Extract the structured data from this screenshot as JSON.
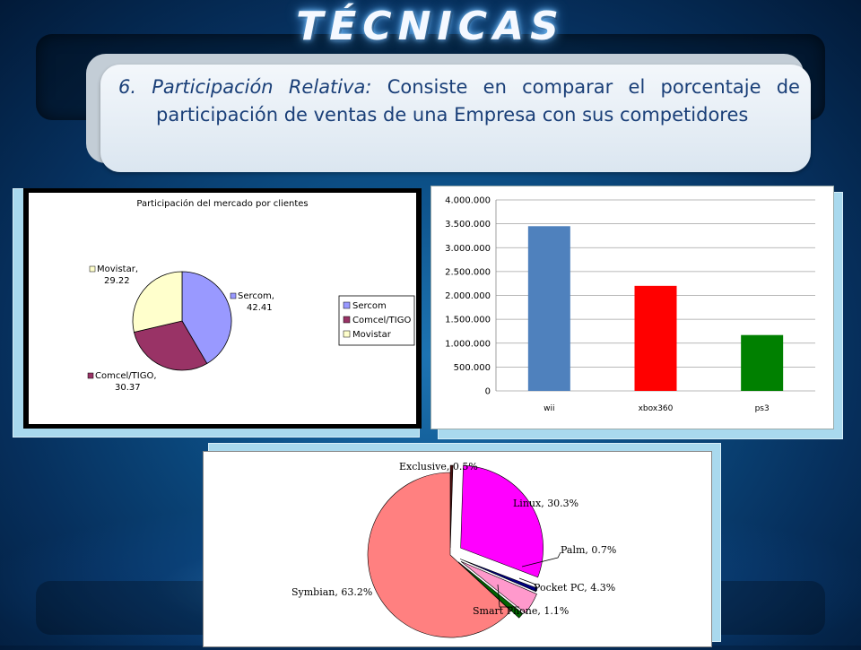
{
  "slide": {
    "title": "TÉCNICAS",
    "text_lead": "6. Participación Relativa:",
    "text_body": "Consiste en comparar el porcentaje de participación de ventas de una Empresa con sus competidores"
  },
  "chart_data": [
    {
      "type": "pie",
      "title": "Participación del mercado por clientes",
      "legend_position": "right",
      "slices": [
        {
          "name": "Sercom",
          "value": 42.41,
          "color": "#9999ff",
          "label": "Sercom,",
          "value_label": "42.41"
        },
        {
          "name": "Comcel/TIGO",
          "value": 30.37,
          "color": "#993366",
          "label": "Comcel/TIGO,",
          "value_label": "30.37"
        },
        {
          "name": "Movistar",
          "value": 29.22,
          "color": "#ffffcc",
          "label": "Movistar,",
          "value_label": "29.22"
        }
      ],
      "legend": [
        "Sercom",
        "Comcel/TIGO",
        "Movistar"
      ]
    },
    {
      "type": "bar",
      "title": "",
      "categories": [
        "wii",
        "xbox360",
        "ps3"
      ],
      "values": [
        3450000,
        2200000,
        1170000
      ],
      "colors": [
        "#4f81bd",
        "#ff0000",
        "#008000"
      ],
      "ylim": [
        0,
        4000000
      ],
      "yticks": [
        0,
        500000,
        1000000,
        1500000,
        2000000,
        2500000,
        3000000,
        3500000,
        4000000
      ],
      "ytick_labels": [
        "0",
        "500.000",
        "1.000.000",
        "1.500.000",
        "2.000.000",
        "2.500.000",
        "3.000.000",
        "3.500.000",
        "4.000.000"
      ],
      "grid": true
    },
    {
      "type": "pie",
      "title": "",
      "slices": [
        {
          "name": "Exclusive",
          "value": 0.5,
          "color": "#4a0f0f",
          "label": "Exclusive, 0.5%"
        },
        {
          "name": "Linux",
          "value": 30.3,
          "color": "#ff00ff",
          "label": "Linux, 30.3%"
        },
        {
          "name": "Palm",
          "value": 0.7,
          "color": "#000080",
          "label": "Palm, 0.7%"
        },
        {
          "name": "Pocket PC",
          "value": 4.3,
          "color": "#ff99cc",
          "label": "Pocket PC, 4.3%"
        },
        {
          "name": "Smart Phone",
          "value": 1.1,
          "color": "#006600",
          "label": "Smart Phone, 1.1%"
        },
        {
          "name": "Symbian",
          "value": 63.2,
          "color": "#ff8080",
          "label": "Symbian, 63.2%"
        }
      ]
    }
  ]
}
